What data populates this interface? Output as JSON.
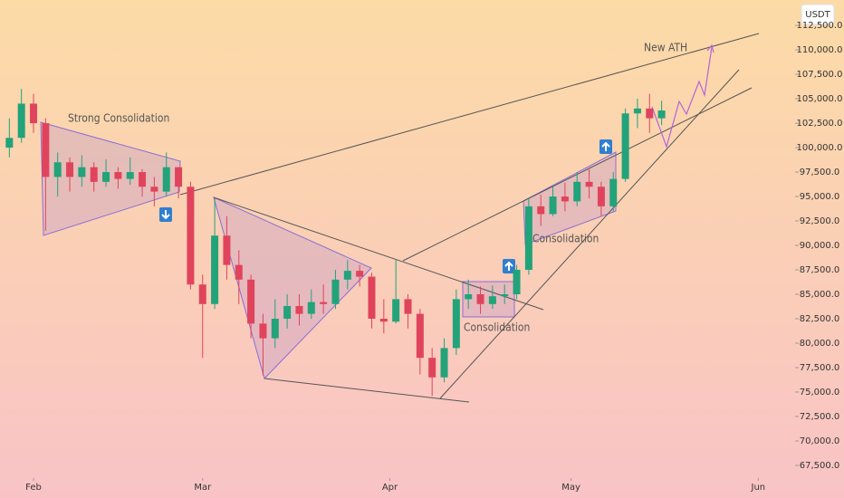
{
  "chart_data": {
    "type": "candlestick",
    "currency": "USDT",
    "x": [
      -4,
      -2,
      0,
      2,
      4,
      6,
      8,
      10,
      12,
      14,
      16,
      18,
      20,
      22,
      24,
      26,
      28,
      30,
      32,
      34,
      36,
      38,
      40,
      42,
      44,
      46,
      48,
      50,
      52,
      54,
      56,
      58,
      60,
      62,
      64,
      66,
      68,
      70,
      72,
      74,
      76,
      78,
      80,
      82,
      84,
      86,
      88,
      90,
      92,
      94,
      96,
      98,
      100,
      102,
      104
    ],
    "open": [
      100000,
      101000,
      104500,
      102500,
      97000,
      98500,
      97000,
      98000,
      96500,
      97500,
      96800,
      97500,
      96000,
      95500,
      98000,
      96000,
      86000,
      84000,
      91000,
      88000,
      86500,
      82000,
      80500,
      82500,
      83800,
      83000,
      84200,
      84000,
      86500,
      87400,
      86800,
      82500,
      82200,
      84500,
      83000,
      78500,
      76500,
      79500,
      84500,
      85000,
      84000,
      84800,
      85000,
      87500,
      94000,
      93200,
      95000,
      94500,
      96500,
      96000,
      94000,
      96800,
      103500,
      104000,
      103000
    ],
    "high": [
      103000,
      106000,
      105500,
      103000,
      99500,
      99000,
      99200,
      98500,
      98800,
      98000,
      99000,
      97800,
      97000,
      99500,
      98000,
      96500,
      87000,
      94800,
      93000,
      89500,
      87000,
      83000,
      84500,
      85000,
      85000,
      85500,
      86000,
      87500,
      88500,
      88000,
      87200,
      84500,
      88500,
      85000,
      83500,
      79500,
      80500,
      85500,
      86500,
      85800,
      85900,
      86000,
      88000,
      94800,
      95200,
      96000,
      96400,
      97500,
      97800,
      96500,
      97500,
      104000,
      105000,
      105500,
      104800
    ],
    "low": [
      99000,
      100500,
      101500,
      91500,
      95000,
      95500,
      96000,
      95500,
      96000,
      95800,
      96200,
      95000,
      94000,
      95000,
      94800,
      85500,
      78500,
      83500,
      86500,
      84000,
      80500,
      76700,
      79500,
      81500,
      81800,
      82500,
      83000,
      83500,
      85500,
      85800,
      81500,
      81000,
      82000,
      81500,
      76800,
      74600,
      76000,
      78800,
      83500,
      83000,
      83500,
      84000,
      84500,
      87000,
      92000,
      93000,
      93500,
      94000,
      94800,
      93000,
      93500,
      96500,
      102000,
      101500,
      102300
    ],
    "close": [
      101000,
      104500,
      102500,
      97000,
      98500,
      97000,
      98000,
      96500,
      97500,
      96800,
      97500,
      96000,
      95500,
      98000,
      96000,
      86000,
      84000,
      91000,
      88000,
      86500,
      82000,
      80500,
      82500,
      83800,
      83000,
      84200,
      84000,
      86500,
      87400,
      86800,
      82500,
      82200,
      84500,
      83000,
      78500,
      76500,
      79500,
      84500,
      85000,
      84000,
      84800,
      85000,
      87500,
      94000,
      93200,
      95000,
      94500,
      96500,
      96000,
      94000,
      96800,
      103500,
      104000,
      103000,
      103800
    ],
    "up_color": "#22a37a",
    "down_color": "#e0445c",
    "xlim": [
      -5.55,
      126.1
    ],
    "ylim": [
      66200,
      115100
    ],
    "xticks": [
      {
        "value": 0,
        "label": "Feb"
      },
      {
        "value": 28,
        "label": "Mar"
      },
      {
        "value": 59,
        "label": "Apr"
      },
      {
        "value": 89,
        "label": "May"
      },
      {
        "value": 120,
        "label": "Jun"
      }
    ],
    "yticks": [
      {
        "value": 67500,
        "label": "67,500.0"
      },
      {
        "value": 70000,
        "label": "70,000.0"
      },
      {
        "value": 72500,
        "label": "72,500.0"
      },
      {
        "value": 75000,
        "label": "75,000.0"
      },
      {
        "value": 77500,
        "label": "77,500.0"
      },
      {
        "value": 80000,
        "label": "80,000.0"
      },
      {
        "value": 82500,
        "label": "82,500.0"
      },
      {
        "value": 85000,
        "label": "85,000.0"
      },
      {
        "value": 87500,
        "label": "87,500.0"
      },
      {
        "value": 90000,
        "label": "90,000.0"
      },
      {
        "value": 92500,
        "label": "92,500.0"
      },
      {
        "value": 95000,
        "label": "95,000.0"
      },
      {
        "value": 97500,
        "label": "97,500.0"
      },
      {
        "value": 100000,
        "label": "100,000.0"
      },
      {
        "value": 102500,
        "label": "102,500.0"
      },
      {
        "value": 105000,
        "label": "105,000.0"
      },
      {
        "value": 107500,
        "label": "107,500.0"
      },
      {
        "value": 110000,
        "label": "110,000.0"
      },
      {
        "value": 112500,
        "label": "112,500.0"
      }
    ],
    "annotations": [
      "Strong Consolidation",
      "Consolidation",
      "Consolidation",
      "New ATH"
    ]
  }
}
